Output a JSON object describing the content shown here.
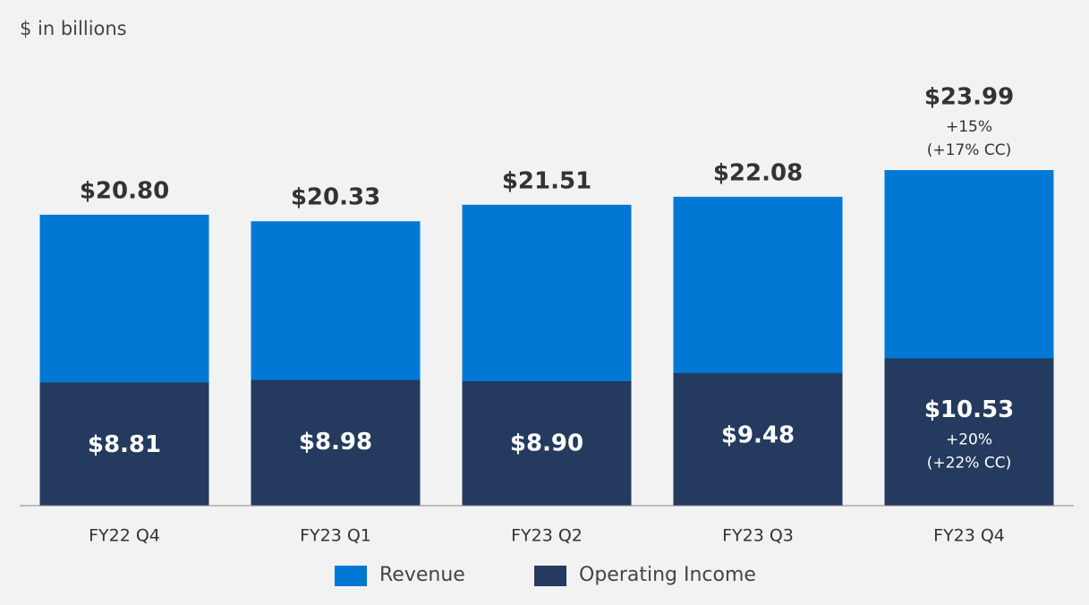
{
  "chart_data": {
    "type": "bar",
    "barmode": "overlay",
    "title": "$ in billions",
    "categories": [
      "FY22 Q4",
      "FY23 Q1",
      "FY23 Q2",
      "FY23 Q3",
      "FY23 Q4"
    ],
    "series": [
      {
        "name": "Revenue",
        "color": "#0078d4",
        "values": [
          20.8,
          20.33,
          21.51,
          22.08,
          23.99
        ],
        "value_labels": [
          "$20.80",
          "$20.33",
          "$21.51",
          "$22.08",
          "$23.99"
        ],
        "notes": [
          null,
          null,
          null,
          null,
          [
            "+15%",
            "(+17% CC)"
          ]
        ]
      },
      {
        "name": "Operating Income",
        "color": "#243a5e",
        "values": [
          8.81,
          8.98,
          8.9,
          9.48,
          10.53
        ],
        "value_labels": [
          "$8.81",
          "$8.98",
          "$8.90",
          "$9.48",
          "$10.53"
        ],
        "notes": [
          null,
          null,
          null,
          null,
          [
            "+20%",
            "(+22% CC)"
          ]
        ]
      }
    ]
  }
}
